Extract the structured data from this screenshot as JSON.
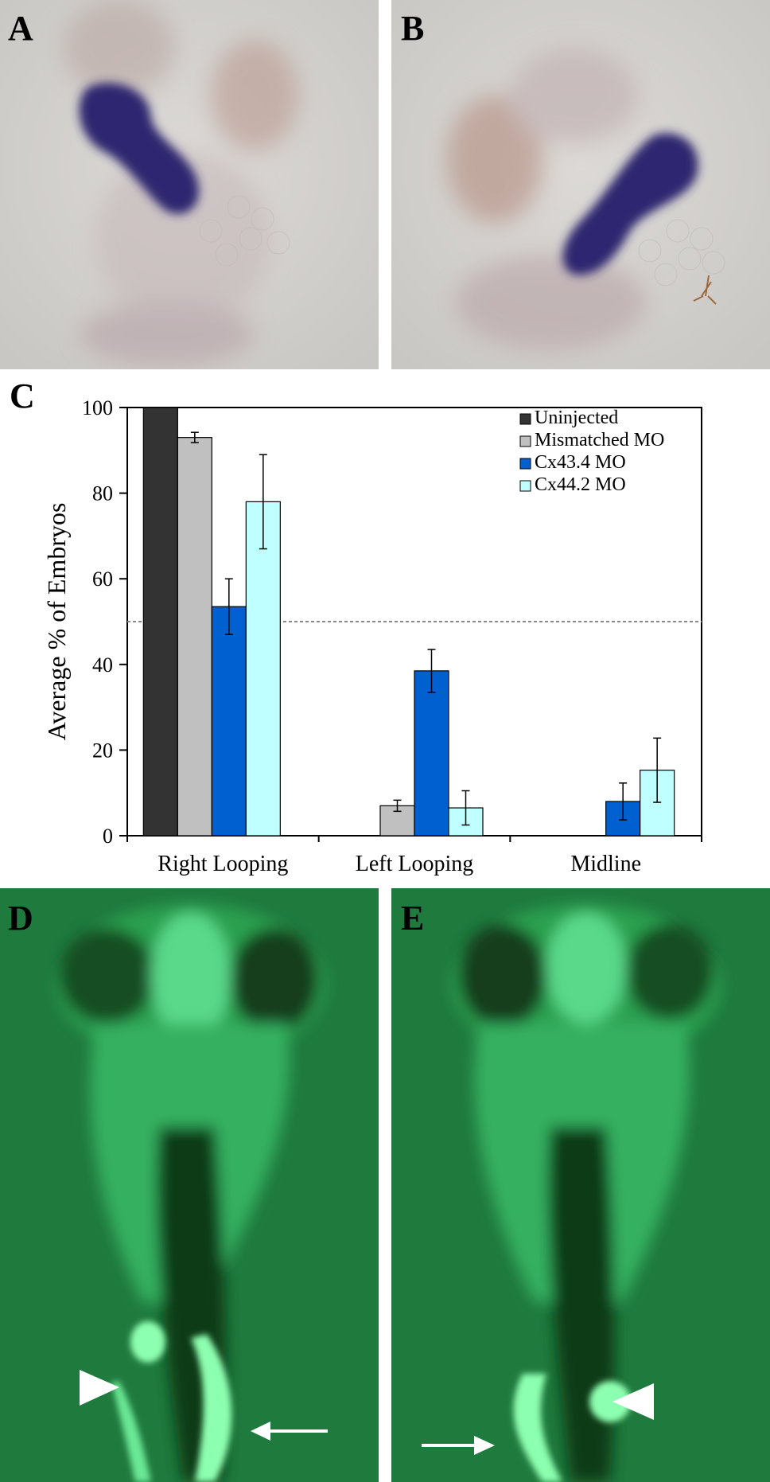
{
  "panel_labels": {
    "a": "A",
    "b": "B",
    "c": "C",
    "d": "D",
    "e": "E"
  },
  "colors": {
    "ish_background": "#cfd1cf",
    "ish_stain": "#2d2870",
    "ish_eye": "#b69a92",
    "gfp_background": "#1f7a3e",
    "gfp_signal": "#8dffb0",
    "uninjected": "#333333",
    "mismatched": "#c0c0c0",
    "cx434": "#0060d0",
    "cx442": "#c0ffff"
  },
  "chart_data": {
    "type": "bar",
    "categories": [
      "Right Looping",
      "Left Looping",
      "Midline"
    ],
    "ylabel": "Average % of Embryos",
    "xlabel": "",
    "ylim": [
      0,
      100
    ],
    "yticks": [
      0,
      20,
      40,
      60,
      80,
      100
    ],
    "reference_line": 50,
    "legend_position": "top-right",
    "series": [
      {
        "name": "Uninjected",
        "color": "#333333",
        "values": [
          100,
          0,
          0
        ],
        "errors": [
          0,
          0,
          0
        ]
      },
      {
        "name": "Mismatched MO",
        "color": "#c0c0c0",
        "values": [
          93,
          7,
          0
        ],
        "errors": [
          1.2,
          1.3,
          0
        ]
      },
      {
        "name": "Cx43.4 MO",
        "color": "#0060d0",
        "values": [
          53.5,
          38.5,
          8
        ],
        "errors": [
          6.5,
          5,
          4.3
        ]
      },
      {
        "name": "Cx44.2 MO",
        "color": "#c0ffff",
        "values": [
          78,
          6.5,
          15.3
        ],
        "errors": [
          11,
          4,
          7.5
        ]
      }
    ]
  }
}
